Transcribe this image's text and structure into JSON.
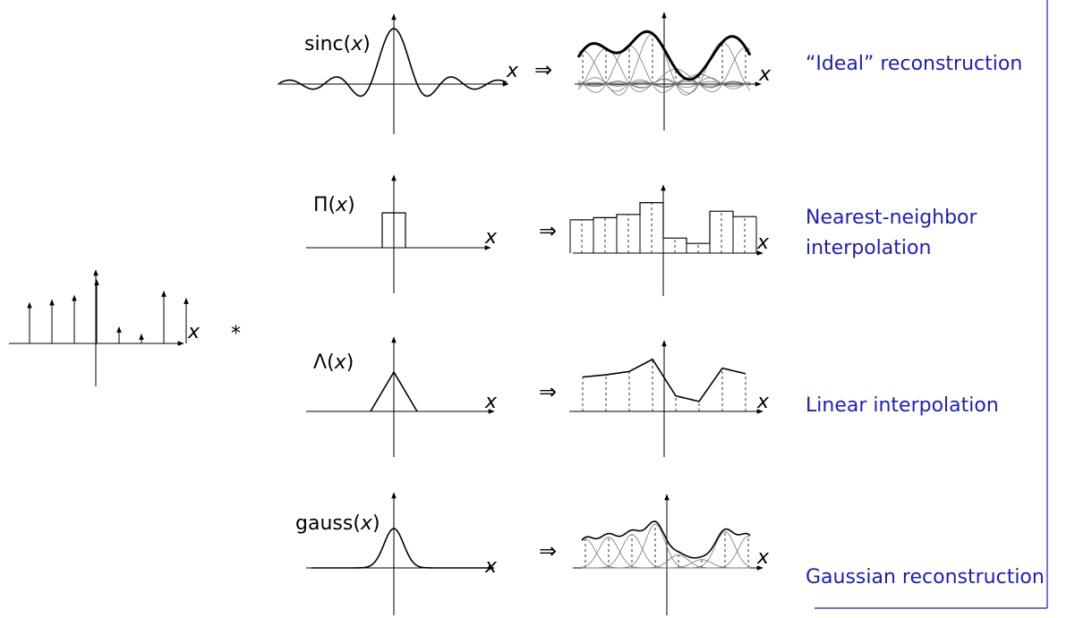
{
  "star": "*",
  "implies": "⇒",
  "x_symbol": "x",
  "rows": [
    {
      "id": "sinc",
      "kernel_name": "sinc",
      "caption": "“Ideal” reconstruction"
    },
    {
      "id": "box",
      "kernel_name": "Π",
      "caption": "Nearest-neighbor interpolation"
    },
    {
      "id": "tent",
      "kernel_name": "Λ",
      "caption": "Linear interpolation"
    },
    {
      "id": "gauss",
      "kernel_name": "gauss",
      "caption": "Gaussian reconstruction"
    }
  ],
  "samples": [
    0.62,
    0.66,
    0.72,
    0.94,
    0.28,
    0.18,
    0.78,
    0.68
  ],
  "colors": {
    "caption": "#1f1fa8",
    "frame_line": "#1f1fa8"
  }
}
